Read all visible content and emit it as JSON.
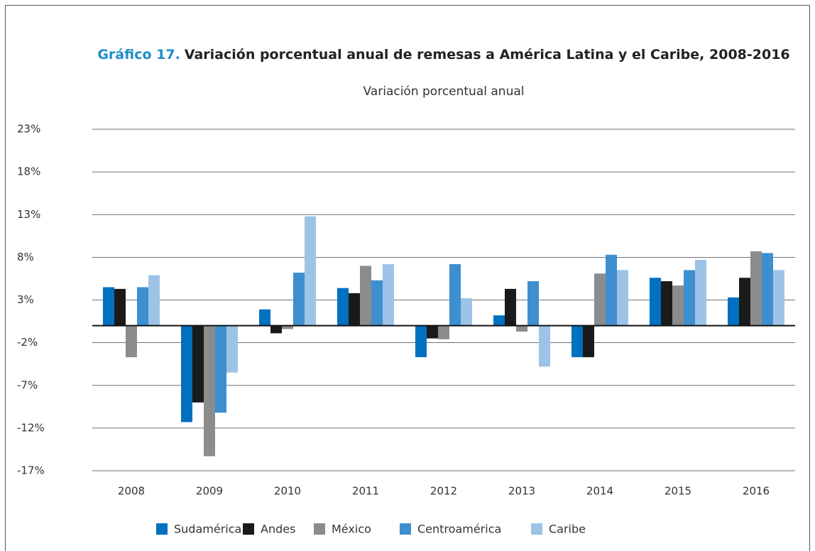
{
  "chart_data": {
    "type": "bar",
    "title_label": "Gráfico 17.",
    "title": "Variación porcentual anual de remesas a América Latina y el Caribe, 2008-2016",
    "subtitle": "Variación porcentual anual",
    "categories": [
      "2008",
      "2009",
      "2010",
      "2011",
      "2012",
      "2013",
      "2014",
      "2015",
      "2016"
    ],
    "series": [
      {
        "name": "Sudamérica",
        "color": "#0070c0",
        "values": [
          4.5,
          -11.3,
          1.9,
          4.4,
          -3.7,
          1.2,
          -3.7,
          5.6,
          3.3
        ]
      },
      {
        "name": "Andes",
        "color": "#1a1a1a",
        "values": [
          4.3,
          -9.0,
          -0.9,
          3.8,
          -1.5,
          4.3,
          -3.7,
          5.2,
          5.6
        ]
      },
      {
        "name": "México",
        "color": "#8c8c8c",
        "values": [
          -3.7,
          -15.3,
          -0.4,
          7.0,
          -1.6,
          -0.7,
          6.1,
          4.7,
          8.7
        ]
      },
      {
        "name": "Centroamérica",
        "color": "#3d8fcf",
        "values": [
          4.5,
          -10.2,
          6.2,
          5.3,
          7.2,
          5.2,
          8.3,
          6.5,
          8.5
        ]
      },
      {
        "name": "Caribe",
        "color": "#9dc3e6",
        "values": [
          5.9,
          -5.5,
          12.8,
          7.2,
          3.2,
          -4.8,
          6.5,
          7.7,
          6.5
        ]
      }
    ],
    "ylim": [
      -17,
      23
    ],
    "yticks": [
      {
        "value": -17,
        "label": "-17%"
      },
      {
        "value": -12,
        "label": "-12%"
      },
      {
        "value": -7,
        "label": "-7%"
      },
      {
        "value": -2,
        "label": "-2%"
      },
      {
        "value": 3,
        "label": "3%"
      },
      {
        "value": 8,
        "label": "8%"
      },
      {
        "value": 13,
        "label": "13%"
      },
      {
        "value": 18,
        "label": "18%"
      },
      {
        "value": 23,
        "label": "23%"
      }
    ],
    "grid": true,
    "legend": "bottom"
  }
}
